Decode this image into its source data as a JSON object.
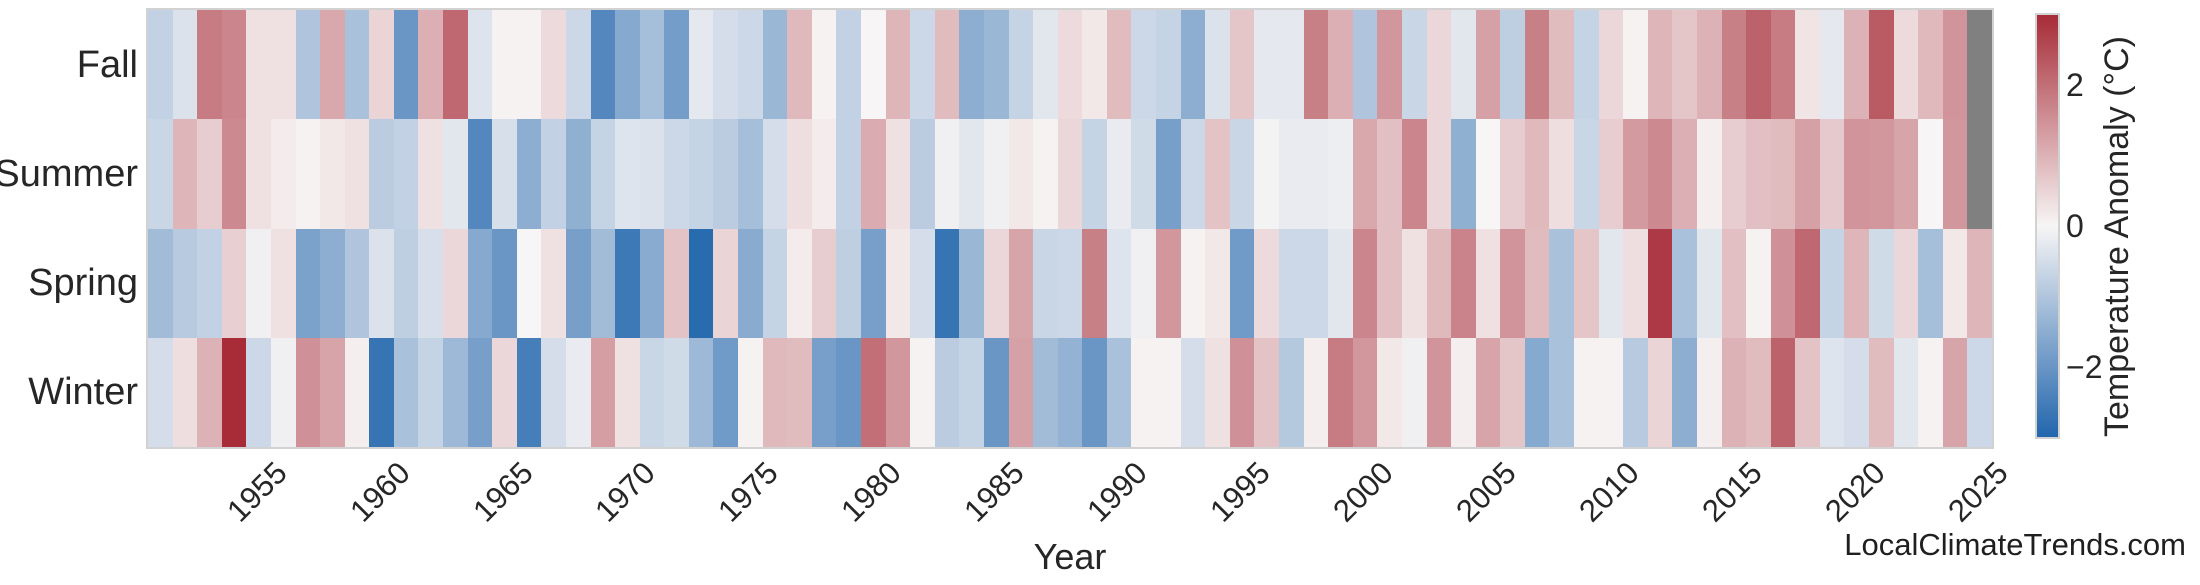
{
  "page": {
    "footer": "LocalClimateTrends.com"
  },
  "chart_data": {
    "type": "heatmap",
    "title": "",
    "xlabel": "Year",
    "ylabel": "",
    "rows": [
      "Fall",
      "Summer",
      "Spring",
      "Winter"
    ],
    "years": [
      1951,
      1952,
      1953,
      1954,
      1955,
      1956,
      1957,
      1958,
      1959,
      1960,
      1961,
      1962,
      1963,
      1964,
      1965,
      1966,
      1967,
      1968,
      1969,
      1970,
      1971,
      1972,
      1973,
      1974,
      1975,
      1976,
      1977,
      1978,
      1979,
      1980,
      1981,
      1982,
      1983,
      1984,
      1985,
      1986,
      1987,
      1988,
      1989,
      1990,
      1991,
      1992,
      1993,
      1994,
      1995,
      1996,
      1997,
      1998,
      1999,
      2000,
      2001,
      2002,
      2003,
      2004,
      2005,
      2006,
      2007,
      2008,
      2009,
      2010,
      2011,
      2012,
      2013,
      2014,
      2015,
      2016,
      2017,
      2018,
      2019,
      2020,
      2021,
      2022,
      2023,
      2024,
      2025
    ],
    "x_ticks": [
      1955,
      1960,
      1965,
      1970,
      1975,
      1980,
      1985,
      1990,
      1995,
      2000,
      2005,
      2010,
      2015,
      2020,
      2025
    ],
    "series": [
      {
        "name": "Fall",
        "values": [
          -0.75,
          -0.4,
          1.8,
          1.65,
          0.3,
          0.3,
          -1.0,
          1.15,
          -1.1,
          0.5,
          -2.0,
          1.05,
          2.1,
          -0.35,
          0.05,
          0.05,
          0.4,
          -0.6,
          -2.3,
          -1.6,
          -1.15,
          -1.85,
          -0.25,
          -0.5,
          -0.6,
          -1.3,
          0.9,
          0.05,
          -0.75,
          0.0,
          0.95,
          -0.6,
          0.85,
          -1.5,
          -1.3,
          -0.7,
          -0.3,
          0.4,
          0.2,
          0.85,
          -0.6,
          -0.7,
          -1.5,
          -0.4,
          0.7,
          -0.25,
          -0.25,
          1.75,
          1.05,
          -1.0,
          1.4,
          -0.65,
          0.45,
          -0.3,
          1.25,
          -0.8,
          1.75,
          0.85,
          -0.7,
          0.45,
          0.05,
          0.95,
          0.7,
          1.0,
          1.75,
          2.2,
          1.8,
          0.25,
          -0.25,
          1.0,
          2.3,
          0.4,
          0.9,
          1.45,
          null
        ]
      },
      {
        "name": "Summer",
        "values": [
          -0.65,
          0.95,
          0.6,
          1.6,
          0.3,
          0.15,
          0.05,
          0.2,
          0.3,
          -0.85,
          -0.75,
          0.3,
          -0.3,
          -2.3,
          -0.45,
          -1.5,
          -0.75,
          -1.45,
          -0.7,
          -0.35,
          -0.4,
          -0.6,
          -0.7,
          -0.85,
          -1.15,
          -0.5,
          0.35,
          0.15,
          -0.75,
          1.1,
          0.3,
          -0.85,
          -0.1,
          -0.3,
          -0.1,
          0.2,
          0.05,
          0.45,
          -0.7,
          -0.2,
          -0.55,
          -1.8,
          -0.6,
          0.75,
          -0.65,
          -0.05,
          -0.2,
          -0.2,
          -0.15,
          1.15,
          0.8,
          1.65,
          0.45,
          -1.45,
          0.0,
          0.6,
          0.9,
          0.35,
          -0.65,
          0.6,
          1.35,
          1.6,
          1.05,
          0.1,
          0.6,
          0.8,
          0.85,
          1.25,
          0.65,
          1.45,
          1.4,
          1.2,
          0.0,
          1.4,
          null
        ]
      },
      {
        "name": "Spring",
        "values": [
          -1.2,
          -0.9,
          -0.75,
          0.55,
          -0.1,
          0.3,
          -1.75,
          -1.5,
          -1.0,
          -0.4,
          -0.8,
          -0.45,
          0.45,
          -1.6,
          -2.0,
          0.0,
          0.3,
          -1.8,
          -1.2,
          -2.6,
          -1.55,
          0.75,
          -2.9,
          0.5,
          -1.55,
          -0.7,
          0.15,
          0.6,
          -0.8,
          -1.8,
          0.2,
          -0.5,
          -2.7,
          -1.3,
          0.45,
          1.2,
          -0.65,
          -0.6,
          1.75,
          -0.35,
          -0.1,
          1.4,
          0.05,
          0.2,
          -1.9,
          0.4,
          -0.6,
          -0.6,
          -0.3,
          1.65,
          0.8,
          0.3,
          0.9,
          1.7,
          0.3,
          1.45,
          0.85,
          -1.1,
          0.7,
          -0.3,
          0.35,
          2.8,
          -1.1,
          -0.3,
          0.8,
          0.05,
          1.5,
          2.1,
          -0.7,
          0.95,
          -0.55,
          0.45,
          -1.15,
          0.2,
          0.95
        ]
      },
      {
        "name": "Winter",
        "values": [
          -0.5,
          0.35,
          1.0,
          3.0,
          -0.6,
          -0.1,
          1.5,
          1.2,
          0.1,
          -2.7,
          -1.1,
          -0.7,
          -1.25,
          -1.8,
          0.45,
          -2.5,
          -0.5,
          -0.2,
          1.3,
          0.3,
          -0.65,
          -0.55,
          -1.25,
          -1.9,
          0.05,
          0.9,
          0.85,
          -1.8,
          -2.0,
          2.0,
          1.4,
          0.05,
          -0.85,
          -0.7,
          -2.0,
          1.25,
          -1.2,
          -1.4,
          -2.0,
          -1.1,
          0.05,
          0.05,
          -0.5,
          0.3,
          1.5,
          0.75,
          -0.95,
          0.1,
          1.8,
          1.4,
          0.2,
          -0.1,
          1.45,
          0.1,
          1.2,
          0.7,
          -1.6,
          -1.1,
          0.05,
          0.05,
          -0.9,
          0.5,
          -1.5,
          0.1,
          1.0,
          0.85,
          2.2,
          0.75,
          -0.35,
          -0.5,
          0.85,
          -0.3,
          0.05,
          1.2,
          -0.6
        ]
      }
    ],
    "colorbar": {
      "label": "Temperature Anomaly (°C)",
      "vmin": -3,
      "vmax": 3,
      "ticks": [
        {
          "label": "2",
          "value": 2
        },
        {
          "label": "0",
          "value": 0
        },
        {
          "label": "−2",
          "value": -2
        }
      ],
      "color_positive": "#a72c38",
      "color_center": "#f7f5f5",
      "color_negative": "#2266ad",
      "nan_color": "#808080"
    },
    "layout": {
      "grid": false,
      "legend": "colorbar-right",
      "x_tick_rotation": 45
    }
  }
}
